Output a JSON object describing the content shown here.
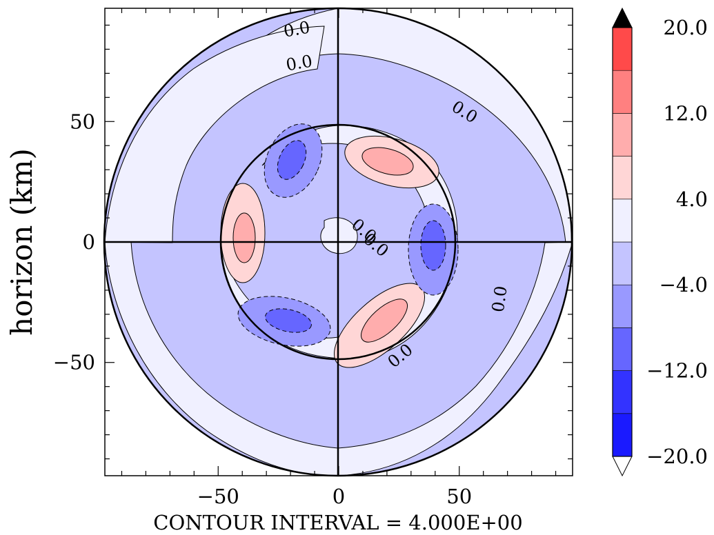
{
  "chart_data": {
    "type": "heatmap",
    "subtype": "polar filled contour",
    "ylabel": "horizon (km)",
    "xlabel": "CONTOUR INTERVAL = 4.000E+00",
    "xlim": [
      -97,
      97
    ],
    "ylim": [
      -97,
      97
    ],
    "outer_radius_km": 97,
    "inner_circle_radius_km": 48,
    "x_ticks": [
      -50,
      0,
      50
    ],
    "y_ticks": [
      -50,
      0,
      50
    ],
    "x_tick_labels": [
      "−50",
      "0",
      "50"
    ],
    "y_tick_labels": [
      "−50",
      "0",
      "50"
    ],
    "contour_interval": 4.0,
    "contour_labels": [
      {
        "text": "0.0",
        "x": -17,
        "y": 86,
        "rotate": -10
      },
      {
        "text": "0.0",
        "x": -16,
        "y": 72,
        "rotate": -10
      },
      {
        "text": "0.0",
        "x": 51,
        "y": 52,
        "rotate": 32
      },
      {
        "text": "0.0",
        "x": 9,
        "y": 3,
        "rotate": 40
      },
      {
        "text": "0.0",
        "x": 14,
        "y": -3,
        "rotate": 40
      },
      {
        "text": "0.0",
        "x": 69,
        "y": -24,
        "rotate": -82
      },
      {
        "text": "0.0",
        "x": 27,
        "y": -49,
        "rotate": -40
      }
    ],
    "colorbar": {
      "levels": [
        -20,
        -16,
        -12,
        -8,
        -4,
        0,
        4,
        8,
        12,
        16,
        20
      ],
      "tick_labels": [
        "−20.0",
        "−12.0",
        "−4.0",
        "4.0",
        "12.0",
        "20.0"
      ],
      "tick_values": [
        -20,
        -12,
        -4,
        4,
        12,
        20
      ],
      "colors_bottom_to_top": [
        "#1a1aff",
        "#3333ff",
        "#6666ff",
        "#9999ff",
        "#c4c4ff",
        "#f0f0ff",
        "#ffd6d6",
        "#ffadad",
        "#ff8080",
        "#ff4a4a"
      ],
      "overflow_high_color": "#000000",
      "overflow_low_color": "#ffffff"
    },
    "features": [
      {
        "name": "positive-lobe-ne",
        "center_km": [
          24,
          32
        ],
        "peak": 10
      },
      {
        "name": "positive-lobe-w",
        "center_km": [
          -38,
          2
        ],
        "peak": 10
      },
      {
        "name": "positive-lobe-se",
        "center_km": [
          20,
          -32
        ],
        "peak": 10
      },
      {
        "name": "negative-lobe-nw",
        "center_km": [
          -22,
          35
        ],
        "peak": -10
      },
      {
        "name": "negative-lobe-e",
        "center_km": [
          40,
          -2
        ],
        "peak": -10
      },
      {
        "name": "negative-lobe-sw",
        "center_km": [
          -26,
          -34
        ],
        "peak": -10
      }
    ],
    "grid": false,
    "legend": "right colorbar"
  }
}
